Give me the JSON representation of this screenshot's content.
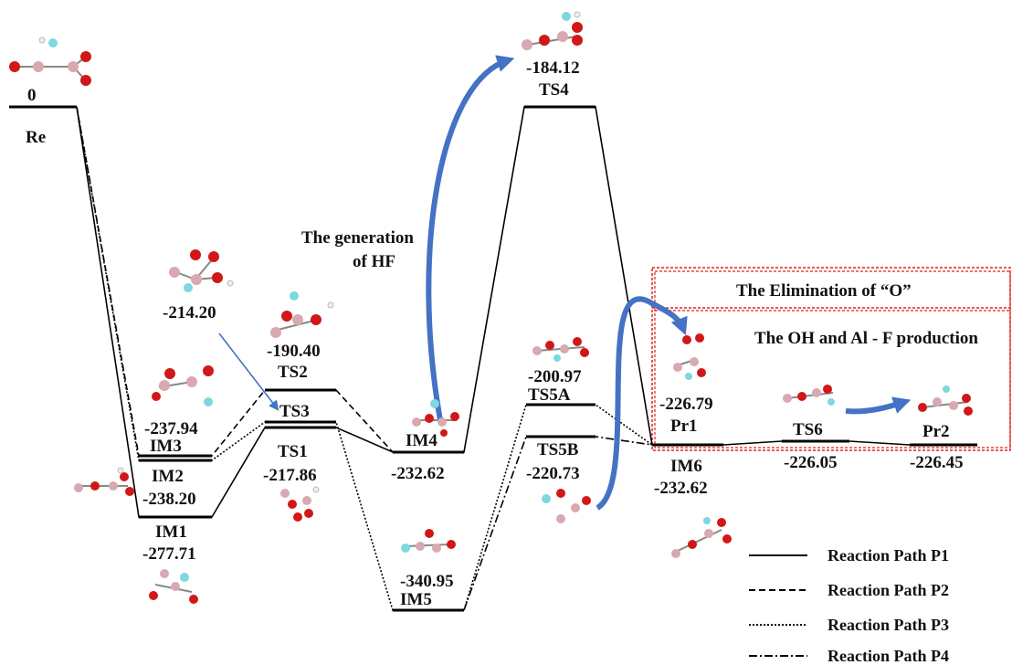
{
  "diagram": {
    "states": [
      {
        "id": "Re",
        "label": "Re",
        "energy": "0"
      },
      {
        "id": "IM3",
        "label": "IM3",
        "energy": "-237.94"
      },
      {
        "id": "IM2",
        "label": "IM2",
        "energy": "-238.20"
      },
      {
        "id": "IM1",
        "label": "IM1",
        "energy": "-277.71"
      },
      {
        "id": "TS3",
        "label": "TS3",
        "energy": "-214.20"
      },
      {
        "id": "TS2",
        "label": "TS2",
        "energy": "-190.40"
      },
      {
        "id": "TS1",
        "label": "TS1",
        "energy": "-217.86"
      },
      {
        "id": "IM4",
        "label": "IM4",
        "energy": "-232.62"
      },
      {
        "id": "IM5",
        "label": "IM5",
        "energy": "-340.95"
      },
      {
        "id": "TS4",
        "label": "TS4",
        "energy": "-184.12"
      },
      {
        "id": "TS5A",
        "label": "TS5A",
        "energy": "-200.97"
      },
      {
        "id": "TS5B",
        "label": "TS5B",
        "energy": "-220.73"
      },
      {
        "id": "Pr1",
        "label": "Pr1",
        "energy": "-226.79"
      },
      {
        "id": "IM6",
        "label": "IM6",
        "energy": "-232.62"
      },
      {
        "id": "TS6",
        "label": "TS6",
        "energy": "-226.05"
      },
      {
        "id": "Pr2",
        "label": "Pr2",
        "energy": "-226.45"
      }
    ],
    "annotations": {
      "hf_line1": "The generation",
      "hf_line2": "of HF",
      "elimination": "The Elimination of “O”",
      "production": "The OH and Al - F production"
    },
    "legend": [
      {
        "label": "Reaction Path P1",
        "style": "solid"
      },
      {
        "label": "Reaction Path P2",
        "style": "dashed"
      },
      {
        "label": "Reaction Path P3",
        "style": "dotted"
      },
      {
        "label": "Reaction Path P4",
        "style": "dash-dot"
      }
    ],
    "colors": {
      "line": "#000000",
      "arrow": "#4472c4",
      "box": "#e02020",
      "atom_b": "#d9a8b0",
      "atom_o": "#d01818",
      "atom_f": "#7dd8e0",
      "atom_h": "#f2f2f2"
    }
  }
}
